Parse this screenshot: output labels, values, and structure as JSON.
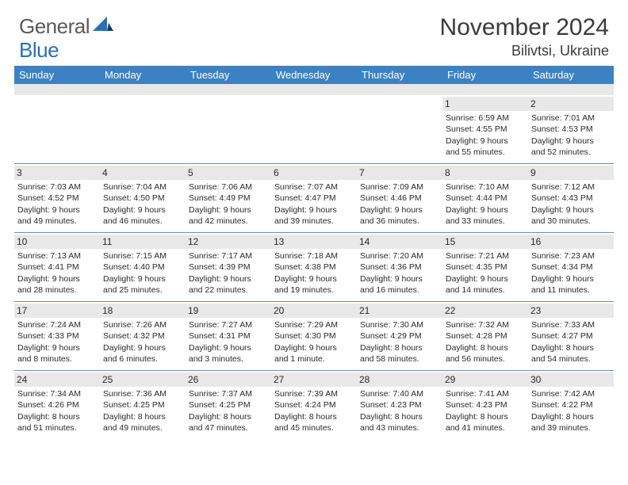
{
  "logo": {
    "general": "General",
    "blue": "Blue"
  },
  "title": "November 2024",
  "location": "Bilivtsi, Ukraine",
  "colors": {
    "header_bg": "#3b82c4",
    "header_text": "#ffffff",
    "daynum_bg": "#e8e8e8",
    "border": "#6b8fb5",
    "text": "#2a2a2a",
    "logo_gray": "#5a5a5a",
    "logo_blue": "#2a6fb5"
  },
  "dayHeaders": [
    "Sunday",
    "Monday",
    "Tuesday",
    "Wednesday",
    "Thursday",
    "Friday",
    "Saturday"
  ],
  "weeks": [
    [
      {
        "n": "",
        "rise": "",
        "set": "",
        "d1": "",
        "d2": ""
      },
      {
        "n": "",
        "rise": "",
        "set": "",
        "d1": "",
        "d2": ""
      },
      {
        "n": "",
        "rise": "",
        "set": "",
        "d1": "",
        "d2": ""
      },
      {
        "n": "",
        "rise": "",
        "set": "",
        "d1": "",
        "d2": ""
      },
      {
        "n": "",
        "rise": "",
        "set": "",
        "d1": "",
        "d2": ""
      },
      {
        "n": "1",
        "rise": "Sunrise: 6:59 AM",
        "set": "Sunset: 4:55 PM",
        "d1": "Daylight: 9 hours",
        "d2": "and 55 minutes."
      },
      {
        "n": "2",
        "rise": "Sunrise: 7:01 AM",
        "set": "Sunset: 4:53 PM",
        "d1": "Daylight: 9 hours",
        "d2": "and 52 minutes."
      }
    ],
    [
      {
        "n": "3",
        "rise": "Sunrise: 7:03 AM",
        "set": "Sunset: 4:52 PM",
        "d1": "Daylight: 9 hours",
        "d2": "and 49 minutes."
      },
      {
        "n": "4",
        "rise": "Sunrise: 7:04 AM",
        "set": "Sunset: 4:50 PM",
        "d1": "Daylight: 9 hours",
        "d2": "and 46 minutes."
      },
      {
        "n": "5",
        "rise": "Sunrise: 7:06 AM",
        "set": "Sunset: 4:49 PM",
        "d1": "Daylight: 9 hours",
        "d2": "and 42 minutes."
      },
      {
        "n": "6",
        "rise": "Sunrise: 7:07 AM",
        "set": "Sunset: 4:47 PM",
        "d1": "Daylight: 9 hours",
        "d2": "and 39 minutes."
      },
      {
        "n": "7",
        "rise": "Sunrise: 7:09 AM",
        "set": "Sunset: 4:46 PM",
        "d1": "Daylight: 9 hours",
        "d2": "and 36 minutes."
      },
      {
        "n": "8",
        "rise": "Sunrise: 7:10 AM",
        "set": "Sunset: 4:44 PM",
        "d1": "Daylight: 9 hours",
        "d2": "and 33 minutes."
      },
      {
        "n": "9",
        "rise": "Sunrise: 7:12 AM",
        "set": "Sunset: 4:43 PM",
        "d1": "Daylight: 9 hours",
        "d2": "and 30 minutes."
      }
    ],
    [
      {
        "n": "10",
        "rise": "Sunrise: 7:13 AM",
        "set": "Sunset: 4:41 PM",
        "d1": "Daylight: 9 hours",
        "d2": "and 28 minutes."
      },
      {
        "n": "11",
        "rise": "Sunrise: 7:15 AM",
        "set": "Sunset: 4:40 PM",
        "d1": "Daylight: 9 hours",
        "d2": "and 25 minutes."
      },
      {
        "n": "12",
        "rise": "Sunrise: 7:17 AM",
        "set": "Sunset: 4:39 PM",
        "d1": "Daylight: 9 hours",
        "d2": "and 22 minutes."
      },
      {
        "n": "13",
        "rise": "Sunrise: 7:18 AM",
        "set": "Sunset: 4:38 PM",
        "d1": "Daylight: 9 hours",
        "d2": "and 19 minutes."
      },
      {
        "n": "14",
        "rise": "Sunrise: 7:20 AM",
        "set": "Sunset: 4:36 PM",
        "d1": "Daylight: 9 hours",
        "d2": "and 16 minutes."
      },
      {
        "n": "15",
        "rise": "Sunrise: 7:21 AM",
        "set": "Sunset: 4:35 PM",
        "d1": "Daylight: 9 hours",
        "d2": "and 14 minutes."
      },
      {
        "n": "16",
        "rise": "Sunrise: 7:23 AM",
        "set": "Sunset: 4:34 PM",
        "d1": "Daylight: 9 hours",
        "d2": "and 11 minutes."
      }
    ],
    [
      {
        "n": "17",
        "rise": "Sunrise: 7:24 AM",
        "set": "Sunset: 4:33 PM",
        "d1": "Daylight: 9 hours",
        "d2": "and 8 minutes."
      },
      {
        "n": "18",
        "rise": "Sunrise: 7:26 AM",
        "set": "Sunset: 4:32 PM",
        "d1": "Daylight: 9 hours",
        "d2": "and 6 minutes."
      },
      {
        "n": "19",
        "rise": "Sunrise: 7:27 AM",
        "set": "Sunset: 4:31 PM",
        "d1": "Daylight: 9 hours",
        "d2": "and 3 minutes."
      },
      {
        "n": "20",
        "rise": "Sunrise: 7:29 AM",
        "set": "Sunset: 4:30 PM",
        "d1": "Daylight: 9 hours",
        "d2": "and 1 minute."
      },
      {
        "n": "21",
        "rise": "Sunrise: 7:30 AM",
        "set": "Sunset: 4:29 PM",
        "d1": "Daylight: 8 hours",
        "d2": "and 58 minutes."
      },
      {
        "n": "22",
        "rise": "Sunrise: 7:32 AM",
        "set": "Sunset: 4:28 PM",
        "d1": "Daylight: 8 hours",
        "d2": "and 56 minutes."
      },
      {
        "n": "23",
        "rise": "Sunrise: 7:33 AM",
        "set": "Sunset: 4:27 PM",
        "d1": "Daylight: 8 hours",
        "d2": "and 54 minutes."
      }
    ],
    [
      {
        "n": "24",
        "rise": "Sunrise: 7:34 AM",
        "set": "Sunset: 4:26 PM",
        "d1": "Daylight: 8 hours",
        "d2": "and 51 minutes."
      },
      {
        "n": "25",
        "rise": "Sunrise: 7:36 AM",
        "set": "Sunset: 4:25 PM",
        "d1": "Daylight: 8 hours",
        "d2": "and 49 minutes."
      },
      {
        "n": "26",
        "rise": "Sunrise: 7:37 AM",
        "set": "Sunset: 4:25 PM",
        "d1": "Daylight: 8 hours",
        "d2": "and 47 minutes."
      },
      {
        "n": "27",
        "rise": "Sunrise: 7:39 AM",
        "set": "Sunset: 4:24 PM",
        "d1": "Daylight: 8 hours",
        "d2": "and 45 minutes."
      },
      {
        "n": "28",
        "rise": "Sunrise: 7:40 AM",
        "set": "Sunset: 4:23 PM",
        "d1": "Daylight: 8 hours",
        "d2": "and 43 minutes."
      },
      {
        "n": "29",
        "rise": "Sunrise: 7:41 AM",
        "set": "Sunset: 4:23 PM",
        "d1": "Daylight: 8 hours",
        "d2": "and 41 minutes."
      },
      {
        "n": "30",
        "rise": "Sunrise: 7:42 AM",
        "set": "Sunset: 4:22 PM",
        "d1": "Daylight: 8 hours",
        "d2": "and 39 minutes."
      }
    ]
  ]
}
